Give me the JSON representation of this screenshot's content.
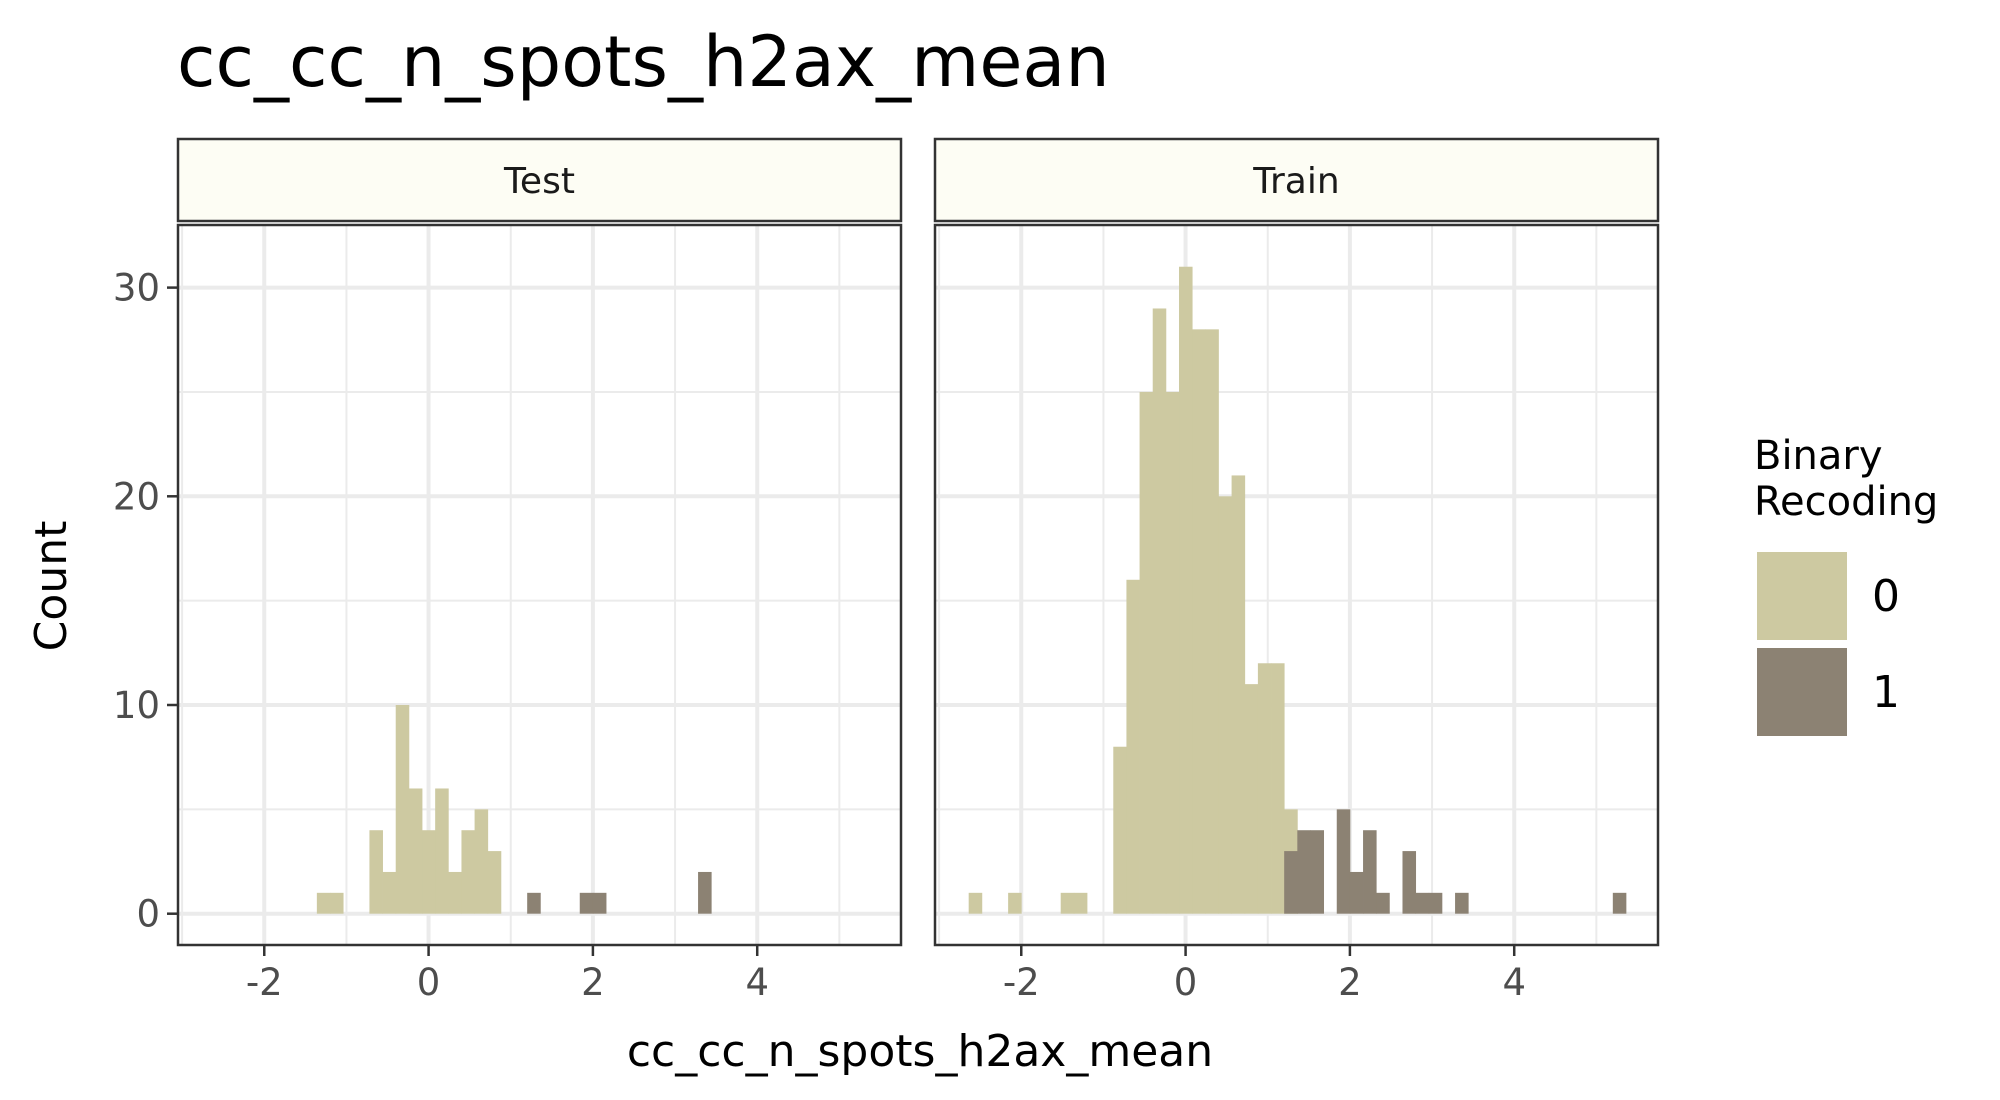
{
  "chart_data": {
    "type": "bar",
    "title": "cc_cc_n_spots_h2ax_mean",
    "xlabel": "cc_cc_n_spots_h2ax_mean",
    "ylabel": "Count",
    "xlim": [
      -3.05,
      5.75
    ],
    "ylim": [
      -1.5,
      33
    ],
    "x_ticks": [
      -2,
      0,
      2,
      4
    ],
    "x_tick_labels": [
      "-2",
      "0",
      "2",
      "4"
    ],
    "y_ticks": [
      0,
      10,
      20,
      30
    ],
    "y_tick_labels": [
      "0",
      "10",
      "20",
      "30"
    ],
    "grid": true,
    "bin_width": 0.16,
    "legend": {
      "title": "Binary\nRecoding",
      "position": "right",
      "entries": [
        {
          "label": "0",
          "color": "#cdc9a1"
        },
        {
          "label": "1",
          "color": "#8c8273"
        }
      ]
    },
    "panels": [
      {
        "name": "Test",
        "series": [
          {
            "name": "0",
            "bins": [
              {
                "x": -1.36,
                "count": 1
              },
              {
                "x": -1.2,
                "count": 1
              },
              {
                "x": -0.72,
                "count": 4
              },
              {
                "x": -0.56,
                "count": 2
              },
              {
                "x": -0.4,
                "count": 10
              },
              {
                "x": -0.24,
                "count": 6
              },
              {
                "x": -0.08,
                "count": 4
              },
              {
                "x": 0.08,
                "count": 6
              },
              {
                "x": 0.24,
                "count": 2
              },
              {
                "x": 0.4,
                "count": 4
              },
              {
                "x": 0.56,
                "count": 5
              },
              {
                "x": 0.72,
                "count": 3
              }
            ]
          },
          {
            "name": "1",
            "bins": [
              {
                "x": 1.2,
                "count": 1
              },
              {
                "x": 1.84,
                "count": 1
              },
              {
                "x": 2.0,
                "count": 1
              },
              {
                "x": 3.28,
                "count": 2
              }
            ]
          }
        ]
      },
      {
        "name": "Train",
        "series": [
          {
            "name": "0",
            "bins": [
              {
                "x": -2.64,
                "count": 1
              },
              {
                "x": -2.16,
                "count": 1
              },
              {
                "x": -1.52,
                "count": 1
              },
              {
                "x": -1.36,
                "count": 1
              },
              {
                "x": -0.88,
                "count": 8
              },
              {
                "x": -0.72,
                "count": 16
              },
              {
                "x": -0.56,
                "count": 25
              },
              {
                "x": -0.4,
                "count": 29
              },
              {
                "x": -0.24,
                "count": 25
              },
              {
                "x": -0.08,
                "count": 31
              },
              {
                "x": 0.08,
                "count": 28
              },
              {
                "x": 0.24,
                "count": 28
              },
              {
                "x": 0.4,
                "count": 20
              },
              {
                "x": 0.56,
                "count": 21
              },
              {
                "x": 0.72,
                "count": 11
              },
              {
                "x": 0.88,
                "count": 12
              },
              {
                "x": 1.04,
                "count": 12
              },
              {
                "x": 1.2,
                "count": 5
              }
            ]
          },
          {
            "name": "1",
            "bins": [
              {
                "x": 1.2,
                "count": 3
              },
              {
                "x": 1.36,
                "count": 4
              },
              {
                "x": 1.52,
                "count": 4
              },
              {
                "x": 1.84,
                "count": 5
              },
              {
                "x": 2.0,
                "count": 2
              },
              {
                "x": 2.16,
                "count": 4
              },
              {
                "x": 2.32,
                "count": 1
              },
              {
                "x": 2.64,
                "count": 3
              },
              {
                "x": 2.8,
                "count": 1
              },
              {
                "x": 2.96,
                "count": 1
              },
              {
                "x": 3.28,
                "count": 1
              },
              {
                "x": 5.2,
                "count": 1
              }
            ]
          }
        ]
      }
    ]
  }
}
